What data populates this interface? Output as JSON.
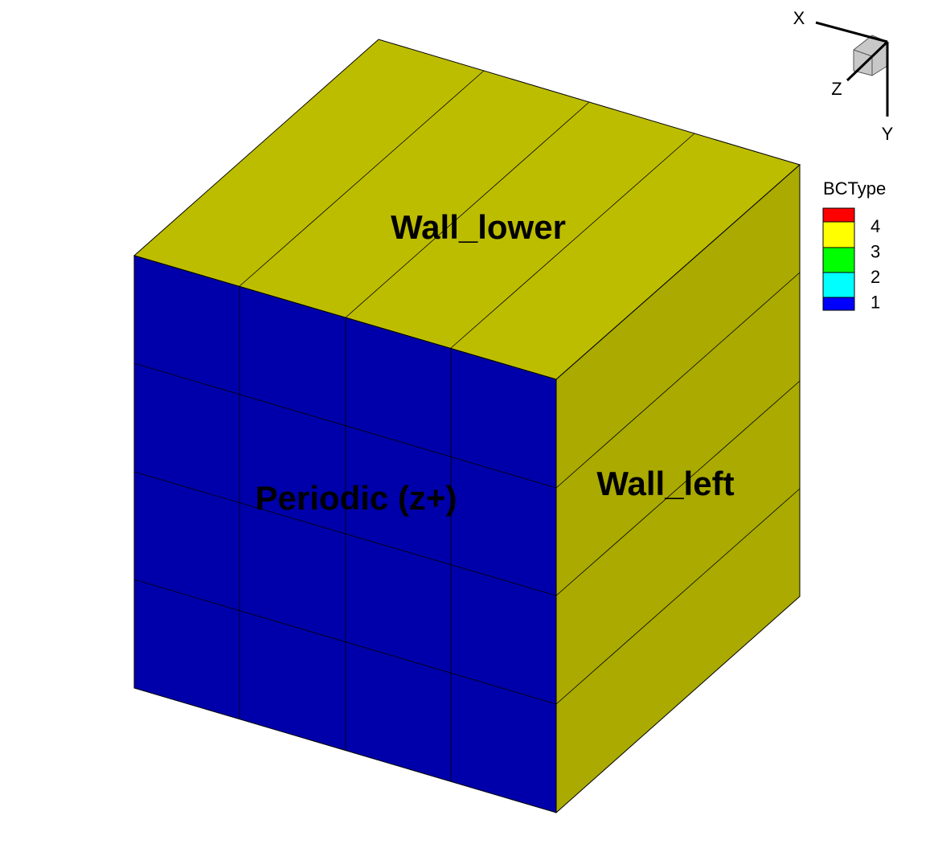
{
  "labels": {
    "top": "Wall_lower",
    "front": "Periodic (z+)",
    "right": "Wall_left"
  },
  "axes": {
    "x": "X",
    "y": "Y",
    "z": "Z"
  },
  "legend": {
    "title": "BCType",
    "levels": [
      {
        "value": 4,
        "color": "#ff0000"
      },
      {
        "value": 3,
        "color": "#ffff00"
      },
      {
        "value": 2,
        "color": "#00ff00"
      },
      {
        "value": 1,
        "color": "#0000ff"
      }
    ],
    "band_colors": [
      "#ff0000",
      "#ffff00",
      "#00ff00",
      "#00ffff",
      "#0000ff"
    ]
  }
}
